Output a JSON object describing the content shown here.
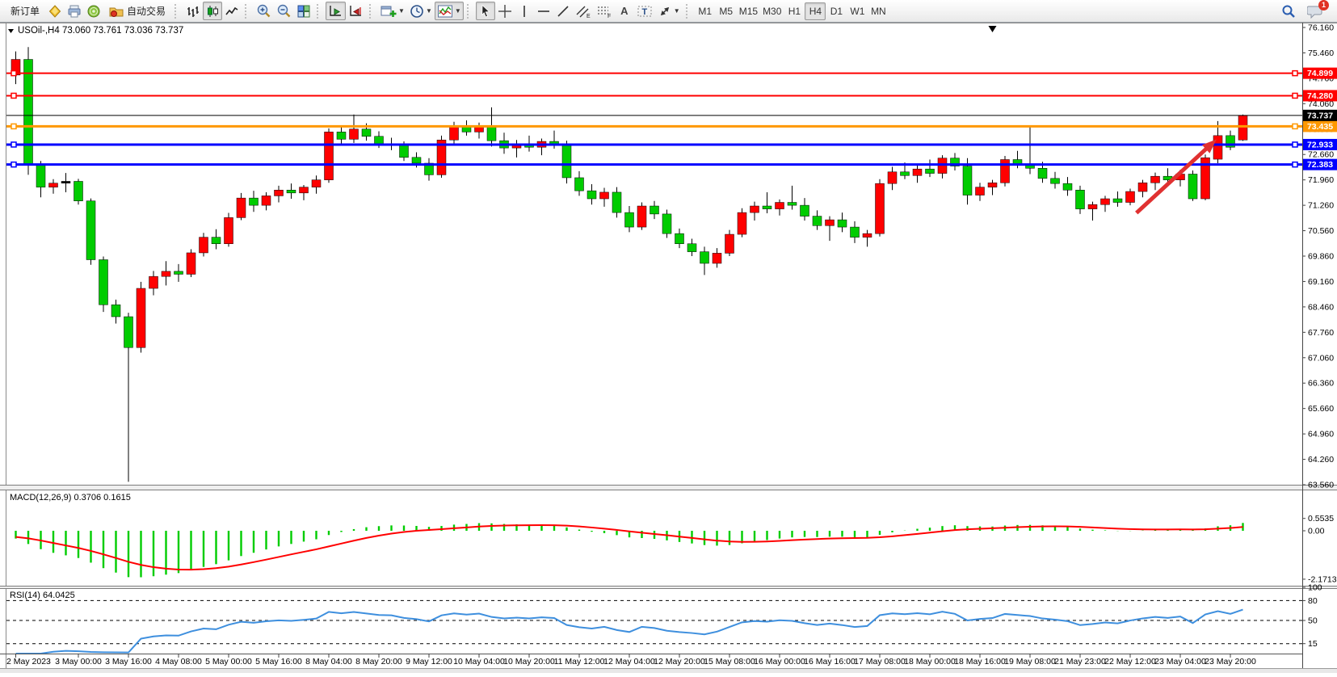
{
  "toolbar": {
    "new_order_label": "新订单",
    "auto_trading_label": "自动交易",
    "icon_letters": {
      "channel": "E",
      "fibo": "F",
      "text": "A",
      "label": "T"
    },
    "timeframes": [
      "M1",
      "M5",
      "M15",
      "M30",
      "H1",
      "H4",
      "D1",
      "W1",
      "MN"
    ],
    "active_timeframe": "H4",
    "notification_count": "1"
  },
  "chart": {
    "title": "USOil-,H4",
    "ohlc_display": "73.060 73.761 73.036 73.737"
  },
  "chart_data": {
    "type": "candlestick",
    "symbol": "USOil-",
    "timeframe": "H4",
    "title": "USOil-,H4 73.060 73.761 73.036 73.737",
    "current_bar": {
      "open": 73.06,
      "high": 73.761,
      "low": 73.036,
      "close": 73.737
    },
    "y_axis_ticks": [
      "76.160",
      "75.460",
      "74.760",
      "74.060",
      "73.360",
      "72.660",
      "71.960",
      "71.260",
      "70.560",
      "69.860",
      "69.160",
      "68.460",
      "67.760",
      "67.060",
      "66.360",
      "65.660",
      "64.960",
      "64.260",
      "63.560"
    ],
    "y_range": [
      63.56,
      76.16
    ],
    "x_labels": [
      [
        "2 May 2023",
        0
      ],
      [
        "3 May 00:00",
        5
      ],
      [
        "3 May 16:00",
        9
      ],
      [
        "4 May 08:00",
        13
      ],
      [
        "5 May 00:00",
        17
      ],
      [
        "5 May 16:00",
        21
      ],
      [
        "8 May 04:00",
        25
      ],
      [
        "8 May 20:00",
        29
      ],
      [
        "9 May 12:00",
        33
      ],
      [
        "10 May 04:00",
        37
      ],
      [
        "10 May 20:00",
        41
      ],
      [
        "11 May 12:00",
        45
      ],
      [
        "12 May 04:00",
        49
      ],
      [
        "12 May 20:00",
        53
      ],
      [
        "15 May 08:00",
        57
      ],
      [
        "16 May 00:00",
        61
      ],
      [
        "16 May 16:00",
        65
      ],
      [
        "17 May 08:00",
        69
      ],
      [
        "18 May 00:00",
        73
      ],
      [
        "18 May 16:00",
        77
      ],
      [
        "19 May 08:00",
        81
      ],
      [
        "21 May 23:00",
        85
      ],
      [
        "22 May 12:00",
        89
      ],
      [
        "23 May 04:00",
        93
      ],
      [
        "23 May 20:00",
        97
      ]
    ],
    "candles": [
      [
        74.85,
        75.5,
        74.6,
        75.28
      ],
      [
        75.28,
        75.62,
        72.1,
        72.36
      ],
      [
        72.36,
        72.48,
        71.48,
        71.76
      ],
      [
        71.76,
        71.98,
        71.58,
        71.87
      ],
      [
        71.87,
        72.15,
        71.62,
        71.92
      ],
      [
        71.92,
        71.99,
        71.28,
        71.38
      ],
      [
        71.38,
        71.45,
        69.62,
        69.76
      ],
      [
        69.76,
        69.85,
        68.32,
        68.52
      ],
      [
        68.52,
        68.66,
        68.0,
        68.19
      ],
      [
        68.19,
        68.3,
        63.64,
        67.34
      ],
      [
        67.34,
        69.15,
        67.2,
        68.97
      ],
      [
        68.97,
        69.45,
        68.78,
        69.3
      ],
      [
        69.3,
        69.72,
        69.05,
        69.44
      ],
      [
        69.44,
        69.64,
        69.15,
        69.36
      ],
      [
        69.36,
        70.05,
        69.28,
        69.95
      ],
      [
        69.95,
        70.5,
        69.85,
        70.38
      ],
      [
        70.38,
        70.6,
        70.05,
        70.2
      ],
      [
        70.2,
        71.05,
        70.12,
        70.92
      ],
      [
        70.92,
        71.6,
        70.85,
        71.46
      ],
      [
        71.46,
        71.66,
        71.08,
        71.26
      ],
      [
        71.26,
        71.62,
        71.12,
        71.52
      ],
      [
        71.52,
        71.8,
        71.34,
        71.68
      ],
      [
        71.68,
        71.86,
        71.44,
        71.6
      ],
      [
        71.6,
        71.82,
        71.4,
        71.76
      ],
      [
        71.76,
        72.08,
        71.58,
        71.96
      ],
      [
        71.96,
        73.38,
        71.88,
        73.28
      ],
      [
        73.28,
        73.46,
        72.92,
        73.08
      ],
      [
        73.08,
        73.76,
        72.98,
        73.36
      ],
      [
        73.36,
        73.52,
        73.04,
        73.16
      ],
      [
        73.16,
        73.3,
        72.84,
        72.96
      ],
      [
        72.96,
        73.12,
        72.78,
        72.92
      ],
      [
        72.92,
        73.02,
        72.48,
        72.58
      ],
      [
        72.58,
        72.72,
        72.3,
        72.42
      ],
      [
        72.42,
        72.56,
        71.94,
        72.1
      ],
      [
        72.1,
        73.18,
        72.02,
        73.06
      ],
      [
        73.06,
        73.56,
        72.94,
        73.44
      ],
      [
        73.44,
        73.6,
        73.18,
        73.28
      ],
      [
        73.28,
        73.54,
        73.1,
        73.46
      ],
      [
        73.46,
        73.96,
        72.88,
        73.04
      ],
      [
        73.04,
        73.26,
        72.68,
        72.84
      ],
      [
        72.84,
        73.06,
        72.58,
        72.96
      ],
      [
        72.96,
        73.18,
        72.74,
        72.86
      ],
      [
        72.86,
        73.1,
        72.64,
        73.02
      ],
      [
        73.02,
        73.32,
        72.82,
        72.94
      ],
      [
        72.94,
        73.04,
        71.86,
        72.02
      ],
      [
        72.02,
        72.2,
        71.52,
        71.66
      ],
      [
        71.66,
        71.84,
        71.28,
        71.44
      ],
      [
        71.44,
        71.74,
        71.22,
        71.62
      ],
      [
        71.62,
        71.76,
        70.92,
        71.06
      ],
      [
        71.06,
        71.24,
        70.52,
        70.66
      ],
      [
        70.66,
        71.34,
        70.58,
        71.24
      ],
      [
        71.24,
        71.38,
        70.88,
        71.02
      ],
      [
        71.02,
        71.14,
        70.36,
        70.48
      ],
      [
        70.48,
        70.62,
        70.08,
        70.2
      ],
      [
        70.2,
        70.34,
        69.86,
        69.98
      ],
      [
        69.98,
        70.12,
        69.34,
        69.66
      ],
      [
        69.66,
        70.08,
        69.54,
        69.94
      ],
      [
        69.94,
        70.58,
        69.86,
        70.46
      ],
      [
        70.46,
        71.18,
        70.38,
        71.06
      ],
      [
        71.06,
        71.36,
        70.84,
        71.24
      ],
      [
        71.24,
        71.62,
        71.04,
        71.16
      ],
      [
        71.16,
        71.42,
        70.98,
        71.34
      ],
      [
        71.34,
        71.8,
        71.14,
        71.26
      ],
      [
        71.26,
        71.46,
        70.84,
        70.96
      ],
      [
        70.96,
        71.12,
        70.58,
        70.7
      ],
      [
        70.7,
        70.96,
        70.28,
        70.86
      ],
      [
        70.86,
        71.06,
        70.52,
        70.66
      ],
      [
        70.66,
        70.82,
        70.22,
        70.38
      ],
      [
        70.38,
        70.58,
        70.12,
        70.48
      ],
      [
        70.48,
        71.98,
        70.4,
        71.86
      ],
      [
        71.86,
        72.32,
        71.68,
        72.18
      ],
      [
        72.18,
        72.44,
        71.98,
        72.08
      ],
      [
        72.08,
        72.36,
        71.88,
        72.26
      ],
      [
        72.26,
        72.52,
        72.04,
        72.14
      ],
      [
        72.14,
        72.64,
        72.0,
        72.56
      ],
      [
        72.56,
        72.7,
        72.22,
        72.34
      ],
      [
        72.34,
        72.56,
        71.28,
        71.54
      ],
      [
        71.54,
        71.88,
        71.38,
        71.76
      ],
      [
        71.76,
        71.96,
        71.54,
        71.88
      ],
      [
        71.88,
        72.62,
        71.78,
        72.52
      ],
      [
        72.52,
        72.76,
        72.28,
        72.4
      ],
      [
        72.4,
        73.45,
        72.12,
        72.28
      ],
      [
        72.28,
        72.46,
        71.88,
        72.0
      ],
      [
        72.0,
        72.18,
        71.72,
        71.86
      ],
      [
        71.86,
        72.04,
        71.52,
        71.68
      ],
      [
        71.68,
        71.8,
        71.02,
        71.16
      ],
      [
        71.16,
        71.36,
        70.84,
        71.28
      ],
      [
        71.28,
        71.52,
        71.08,
        71.44
      ],
      [
        71.44,
        71.64,
        71.22,
        71.34
      ],
      [
        71.34,
        71.72,
        71.26,
        71.64
      ],
      [
        71.64,
        71.96,
        71.48,
        71.88
      ],
      [
        71.88,
        72.16,
        71.68,
        72.06
      ],
      [
        72.06,
        72.28,
        71.84,
        71.96
      ],
      [
        71.96,
        72.24,
        71.78,
        72.12
      ],
      [
        72.12,
        72.22,
        71.38,
        71.44
      ],
      [
        71.44,
        72.66,
        71.4,
        72.57
      ],
      [
        72.53,
        73.58,
        72.42,
        73.18
      ],
      [
        73.18,
        73.32,
        72.78,
        72.86
      ],
      [
        73.06,
        73.761,
        73.036,
        73.737
      ]
    ],
    "bid_line": {
      "value": 73.737,
      "tag": "73.737",
      "color": "#000000"
    },
    "levels": [
      {
        "value": 74.899,
        "tag": "74.899",
        "color": "#FF0000",
        "width": 2
      },
      {
        "value": 74.28,
        "tag": "74.280",
        "color": "#FF0000",
        "width": 2
      },
      {
        "value": 73.435,
        "tag": "73.435",
        "color": "#FF9800",
        "width": 3
      },
      {
        "value": 72.933,
        "tag": "72.933",
        "color": "#0000FF",
        "width": 3
      },
      {
        "value": 72.383,
        "tag": "72.383",
        "color": "#0000FF",
        "width": 3
      }
    ],
    "annotations": [
      {
        "type": "arrow",
        "color": "#E03131",
        "from_i": 89.5,
        "from_p": 71.05,
        "to_i": 95.9,
        "to_p": 73.08
      },
      {
        "type": "marker-down",
        "i": 78
      }
    ],
    "colors": {
      "bull": "#FF0000",
      "bear": "#00CC00",
      "wick": "#000000",
      "macd_hist": "#00CC00",
      "macd_signal": "#FF0000",
      "rsi_line": "#3E8FDE"
    },
    "macd": {
      "label": "MACD(12,26,9)",
      "values": [
        "0.3706",
        "0.1615"
      ],
      "params": [
        12,
        26,
        9
      ],
      "axis_labels": [
        "0.5535",
        "0.00",
        "-2.1713"
      ]
    },
    "rsi": {
      "label": "RSI(14)",
      "value": "64.0425",
      "period": 14,
      "levels": [
        80,
        50,
        15
      ],
      "axis_labels": [
        "100",
        "80",
        "50",
        "15"
      ]
    }
  }
}
